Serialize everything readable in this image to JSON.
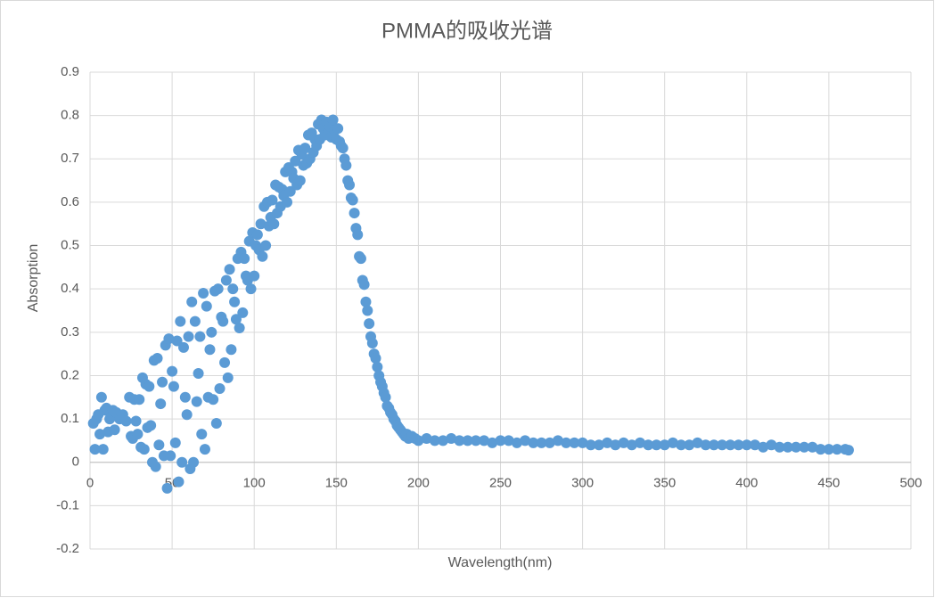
{
  "chart_data": {
    "type": "scatter",
    "title": "PMMA的吸收光谱",
    "x_label": "Wavelength(nm)",
    "y_label": "Absorption",
    "color": "#5b9bd5",
    "grid": true,
    "xlim": [
      0,
      500
    ],
    "xticks": [
      0,
      50,
      100,
      150,
      200,
      250,
      300,
      350,
      400,
      450,
      500
    ],
    "ylim": [
      -0.2,
      0.9
    ],
    "yticks": [
      -0.2,
      -0.1,
      0,
      0.1,
      0.2,
      0.3,
      0.4,
      0.5,
      0.6,
      0.7,
      0.8,
      0.9
    ],
    "x": [
      2,
      3,
      4,
      5,
      6,
      7,
      8,
      9,
      10,
      11,
      12,
      13,
      14,
      15,
      16,
      18,
      20,
      22,
      24,
      25,
      26,
      27,
      28,
      29,
      30,
      31,
      32,
      33,
      34,
      35,
      36,
      37,
      38,
      39,
      40,
      41,
      42,
      43,
      44,
      45,
      46,
      47,
      48,
      49,
      50,
      51,
      52,
      53,
      54,
      55,
      56,
      57,
      58,
      59,
      60,
      61,
      62,
      63,
      64,
      65,
      66,
      67,
      68,
      69,
      70,
      71,
      72,
      73,
      74,
      75,
      76,
      77,
      78,
      79,
      80,
      81,
      82,
      83,
      84,
      85,
      86,
      87,
      88,
      89,
      90,
      91,
      92,
      93,
      94,
      95,
      96,
      97,
      98,
      99,
      100,
      101,
      102,
      103,
      104,
      105,
      106,
      107,
      108,
      109,
      110,
      111,
      112,
      113,
      114,
      115,
      116,
      117,
      118,
      119,
      120,
      121,
      122,
      123,
      124,
      125,
      126,
      127,
      128,
      129,
      130,
      131,
      132,
      133,
      134,
      135,
      136,
      137,
      138,
      139,
      140,
      141,
      142,
      143,
      144,
      145,
      146,
      147,
      148,
      149,
      150,
      151,
      152,
      153,
      154,
      155,
      156,
      157,
      158,
      159,
      160,
      161,
      162,
      163,
      164,
      165,
      166,
      167,
      168,
      169,
      170,
      171,
      172,
      173,
      174,
      175,
      176,
      177,
      178,
      179,
      180,
      181,
      182,
      183,
      184,
      185,
      186,
      187,
      188,
      189,
      190,
      191,
      192,
      193,
      194,
      196,
      198,
      200,
      205,
      210,
      215,
      220,
      225,
      230,
      235,
      240,
      245,
      250,
      255,
      260,
      265,
      270,
      275,
      280,
      285,
      290,
      295,
      300,
      305,
      310,
      315,
      320,
      325,
      330,
      335,
      340,
      345,
      350,
      355,
      360,
      365,
      370,
      375,
      380,
      385,
      390,
      395,
      400,
      405,
      410,
      415,
      420,
      425,
      430,
      435,
      440,
      445,
      450,
      455,
      460,
      462
    ],
    "values": [
      0.09,
      0.03,
      0.1,
      0.11,
      0.065,
      0.15,
      0.03,
      0.12,
      0.125,
      0.07,
      0.1,
      0.105,
      0.12,
      0.075,
      0.115,
      0.1,
      0.11,
      0.095,
      0.15,
      0.06,
      0.055,
      0.145,
      0.095,
      0.065,
      0.145,
      0.035,
      0.195,
      0.03,
      0.18,
      0.08,
      0.175,
      0.085,
      0.0,
      0.235,
      -0.01,
      0.24,
      0.04,
      0.135,
      0.185,
      0.015,
      0.27,
      -0.06,
      0.285,
      0.015,
      0.21,
      0.175,
      0.045,
      0.28,
      -0.045,
      0.325,
      0.0,
      0.265,
      0.15,
      0.11,
      0.29,
      -0.015,
      0.37,
      0.0,
      0.325,
      0.14,
      0.205,
      0.29,
      0.065,
      0.39,
      0.03,
      0.36,
      0.15,
      0.26,
      0.3,
      0.145,
      0.395,
      0.09,
      0.4,
      0.17,
      0.335,
      0.325,
      0.23,
      0.42,
      0.195,
      0.445,
      0.26,
      0.4,
      0.37,
      0.33,
      0.47,
      0.31,
      0.485,
      0.345,
      0.47,
      0.43,
      0.42,
      0.51,
      0.4,
      0.53,
      0.43,
      0.5,
      0.525,
      0.49,
      0.55,
      0.475,
      0.59,
      0.5,
      0.6,
      0.545,
      0.565,
      0.605,
      0.55,
      0.64,
      0.575,
      0.635,
      0.59,
      0.63,
      0.615,
      0.67,
      0.6,
      0.68,
      0.625,
      0.67,
      0.655,
      0.695,
      0.64,
      0.72,
      0.65,
      0.71,
      0.685,
      0.725,
      0.69,
      0.755,
      0.7,
      0.76,
      0.715,
      0.745,
      0.73,
      0.78,
      0.745,
      0.79,
      0.77,
      0.755,
      0.785,
      0.76,
      0.775,
      0.75,
      0.79,
      0.765,
      0.745,
      0.77,
      0.74,
      0.73,
      0.725,
      0.7,
      0.685,
      0.65,
      0.64,
      0.61,
      0.605,
      0.575,
      0.54,
      0.525,
      0.475,
      0.47,
      0.42,
      0.41,
      0.37,
      0.35,
      0.32,
      0.29,
      0.275,
      0.25,
      0.24,
      0.22,
      0.2,
      0.185,
      0.175,
      0.16,
      0.15,
      0.13,
      0.125,
      0.115,
      0.11,
      0.1,
      0.095,
      0.085,
      0.08,
      0.075,
      0.07,
      0.065,
      0.06,
      0.065,
      0.055,
      0.06,
      0.055,
      0.05,
      0.055,
      0.05,
      0.05,
      0.055,
      0.05,
      0.05,
      0.05,
      0.05,
      0.045,
      0.05,
      0.05,
      0.045,
      0.05,
      0.045,
      0.045,
      0.045,
      0.05,
      0.045,
      0.045,
      0.045,
      0.04,
      0.04,
      0.045,
      0.04,
      0.045,
      0.04,
      0.045,
      0.04,
      0.04,
      0.04,
      0.045,
      0.04,
      0.04,
      0.045,
      0.04,
      0.04,
      0.04,
      0.04,
      0.04,
      0.04,
      0.04,
      0.035,
      0.04,
      0.035,
      0.035,
      0.035,
      0.035,
      0.035,
      0.03,
      0.03,
      0.03,
      0.03,
      0.028
    ]
  }
}
